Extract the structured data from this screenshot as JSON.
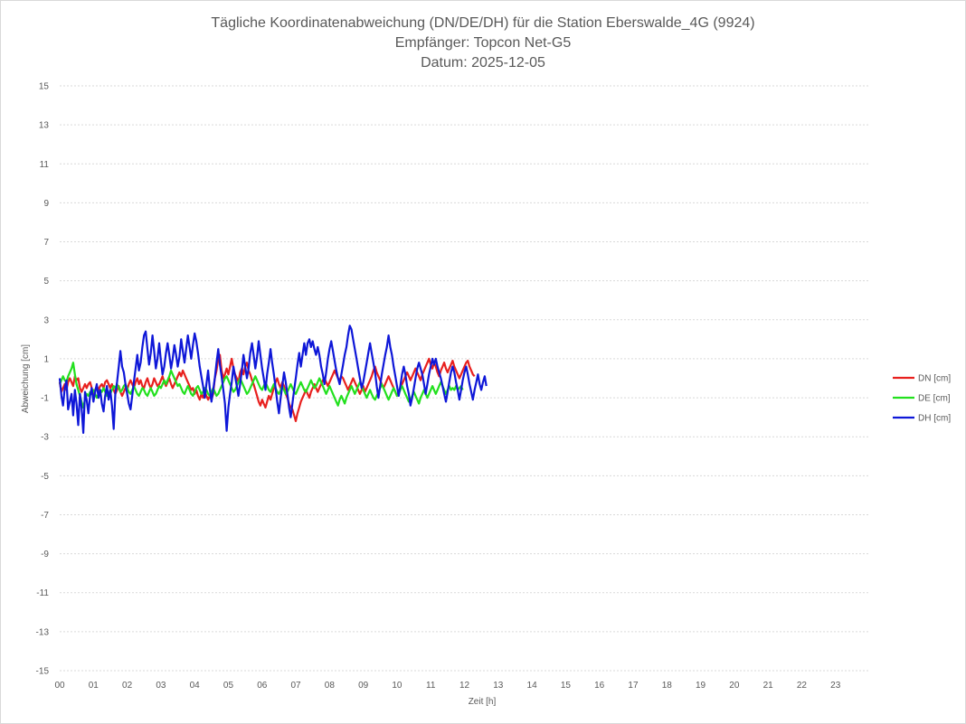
{
  "chart_data": {
    "type": "line",
    "title": [
      "Tägliche Koordinatenabweichung (DN/DE/DH) für die Station Eberswalde_4G (9924)",
      "Empfänger: Topcon Net-G5",
      "Datum: 2025-12-05"
    ],
    "xlabel": "Zeit [h]",
    "ylabel": "Abweichung [cm]",
    "ylim": [
      -15,
      15
    ],
    "yticks": [
      15,
      13,
      11,
      9,
      7,
      5,
      3,
      1,
      -1,
      -3,
      -5,
      -7,
      -9,
      -11,
      -13,
      -15
    ],
    "xlim": [
      0,
      24
    ],
    "xticks": [
      "00",
      "01",
      "02",
      "03",
      "04",
      "05",
      "06",
      "07",
      "08",
      "09",
      "10",
      "11",
      "12",
      "13",
      "14",
      "15",
      "16",
      "17",
      "18",
      "19",
      "20",
      "21",
      "22",
      "23"
    ],
    "grid": "horizontal dotted",
    "legend_position": "right",
    "sampling": "x values in hours at 0.05 h steps starting at 0",
    "series": [
      {
        "name": "DN [cm]",
        "color": "#e8201e",
        "values": [
          -0.2,
          -0.7,
          -0.5,
          -0.3,
          -0.6,
          -0.2,
          0.0,
          -0.2,
          -0.4,
          0.1,
          -0.1,
          0.0,
          -0.5,
          -0.7,
          -0.5,
          -0.3,
          -0.5,
          -0.3,
          -0.2,
          -0.5,
          -0.8,
          -0.6,
          -0.4,
          -0.6,
          -0.4,
          -0.3,
          -0.5,
          -0.2,
          -0.1,
          -0.3,
          -0.5,
          -0.3,
          -0.6,
          -0.8,
          -0.6,
          -0.4,
          -0.7,
          -0.9,
          -0.7,
          -0.5,
          -0.6,
          -0.3,
          -0.1,
          -0.3,
          -0.5,
          -0.2,
          0.0,
          -0.3,
          -0.1,
          -0.4,
          -0.5,
          -0.2,
          0.0,
          -0.3,
          -0.5,
          -0.3,
          0.0,
          -0.2,
          -0.4,
          -0.3,
          -0.1,
          0.1,
          -0.2,
          -0.4,
          -0.2,
          0.0,
          -0.3,
          -0.5,
          -0.3,
          -0.1,
          0.1,
          0.3,
          0.1,
          0.4,
          0.2,
          0.0,
          -0.2,
          -0.4,
          -0.6,
          -0.5,
          -0.8,
          -0.6,
          -0.9,
          -1.1,
          -0.8,
          -1.0,
          -0.7,
          -0.9,
          -1.1,
          -0.9,
          -1.1,
          -0.8,
          0.0,
          0.4,
          1.0,
          1.2,
          0.4,
          0.0,
          0.2,
          0.5,
          0.2,
          0.6,
          1.0,
          0.5,
          0.2,
          0.0,
          -0.2,
          0.3,
          0.5,
          0.2,
          0.6,
          0.8,
          0.4,
          0.2,
          -0.1,
          -0.3,
          -0.6,
          -0.9,
          -1.2,
          -1.4,
          -1.1,
          -1.3,
          -1.5,
          -1.2,
          -0.9,
          -1.1,
          -0.8,
          -0.5,
          -0.2,
          0.0,
          -0.3,
          -0.5,
          -0.2,
          -0.4,
          -0.8,
          -1.0,
          -1.3,
          -1.5,
          -1.6,
          -1.9,
          -2.2,
          -1.8,
          -1.5,
          -1.2,
          -1.0,
          -0.8,
          -0.6,
          -0.8,
          -1.0,
          -0.7,
          -0.5,
          -0.3,
          -0.5,
          -0.7,
          -0.5,
          -0.3,
          -0.1,
          0.0,
          -0.2,
          -0.4,
          -0.2,
          0.0,
          0.2,
          0.4,
          0.2,
          0.0,
          -0.1,
          0.1,
          0.0,
          -0.2,
          -0.4,
          -0.6,
          -0.4,
          -0.2,
          0.0,
          -0.2,
          -0.4,
          -0.6,
          -0.8,
          -0.6,
          -0.4,
          -0.7,
          -0.5,
          -0.3,
          -0.1,
          0.1,
          0.4,
          0.6,
          0.3,
          0.1,
          -0.1,
          -0.3,
          -0.5,
          -0.3,
          -0.1,
          0.1,
          -0.1,
          -0.3,
          -0.5,
          -0.7,
          -0.9,
          -0.7,
          -0.5,
          -0.3,
          -0.1,
          0.1,
          0.3,
          0.1,
          -0.1,
          0.1,
          0.3,
          0.5,
          0.3,
          0.1,
          -0.1,
          0.2,
          0.4,
          0.6,
          0.8,
          1.0,
          0.7,
          0.5,
          0.8,
          0.6,
          0.3,
          0.1,
          0.4,
          0.6,
          0.8,
          0.5,
          0.3,
          0.5,
          0.7,
          0.9,
          0.6,
          0.4,
          0.2,
          0.0,
          0.2,
          0.4,
          0.6,
          0.8,
          0.9,
          0.6,
          0.4,
          0.2,
          0.1
        ]
      },
      {
        "name": "DE [cm]",
        "color": "#22e01e",
        "values": [
          -0.3,
          -0.1,
          0.1,
          -0.1,
          -0.2,
          0.1,
          0.3,
          0.5,
          0.8,
          0.2,
          -0.3,
          -0.6,
          -0.9,
          -1.2,
          -1.5,
          -1.1,
          -0.8,
          -0.9,
          -0.7,
          -0.8,
          -0.6,
          -0.8,
          -1.0,
          -0.8,
          -0.6,
          -0.7,
          -0.5,
          -0.7,
          -0.9,
          -0.7,
          -0.8,
          -0.6,
          -0.4,
          -0.5,
          -0.3,
          -0.5,
          -0.7,
          -0.6,
          -0.4,
          -0.3,
          -0.5,
          -0.7,
          -0.8,
          -0.6,
          -0.4,
          -0.6,
          -0.8,
          -0.9,
          -0.7,
          -0.5,
          -0.6,
          -0.8,
          -0.9,
          -0.7,
          -0.5,
          -0.7,
          -0.9,
          -0.8,
          -0.6,
          -0.4,
          -0.5,
          -0.3,
          -0.1,
          -0.3,
          -0.1,
          0.1,
          0.4,
          0.2,
          0.0,
          -0.2,
          -0.4,
          -0.3,
          -0.5,
          -0.7,
          -0.8,
          -0.6,
          -0.4,
          -0.6,
          -0.8,
          -0.9,
          -0.7,
          -0.5,
          -0.4,
          -0.6,
          -0.8,
          -0.7,
          -0.5,
          -0.6,
          -0.8,
          -0.9,
          -0.7,
          -0.5,
          -0.7,
          -0.9,
          -0.8,
          -0.6,
          -0.4,
          -0.2,
          0.0,
          0.1,
          -0.1,
          -0.3,
          -0.5,
          -0.7,
          -0.6,
          -0.4,
          -0.2,
          0.0,
          -0.2,
          -0.4,
          -0.6,
          -0.8,
          -0.7,
          -0.5,
          -0.3,
          -0.1,
          0.1,
          -0.1,
          -0.3,
          -0.5,
          -0.6,
          -0.4,
          -0.2,
          -0.4,
          -0.6,
          -0.7,
          -0.5,
          -0.3,
          -0.5,
          -0.7,
          -0.8,
          -0.6,
          -0.4,
          -0.6,
          -0.8,
          -0.7,
          -0.5,
          -0.3,
          -0.5,
          -0.7,
          -0.8,
          -0.6,
          -0.4,
          -0.2,
          -0.4,
          -0.6,
          -0.7,
          -0.5,
          -0.3,
          -0.1,
          -0.3,
          -0.5,
          -0.4,
          -0.2,
          0.0,
          -0.2,
          -0.4,
          -0.6,
          -0.8,
          -0.6,
          -0.4,
          -0.6,
          -0.8,
          -1.0,
          -1.2,
          -1.4,
          -1.1,
          -0.9,
          -1.1,
          -1.3,
          -1.0,
          -0.8,
          -0.6,
          -0.4,
          -0.6,
          -0.8,
          -0.6,
          -0.4,
          -0.2,
          -0.4,
          -0.6,
          -0.8,
          -1.0,
          -0.8,
          -0.6,
          -0.8,
          -1.0,
          -1.1,
          -0.9,
          -0.7,
          -0.5,
          -0.3,
          -0.5,
          -0.7,
          -0.9,
          -1.1,
          -0.9,
          -0.7,
          -0.5,
          -0.7,
          -0.9,
          -0.8,
          -0.6,
          -0.4,
          -0.6,
          -0.8,
          -1.0,
          -1.2,
          -1.1,
          -0.9,
          -0.7,
          -0.9,
          -1.1,
          -1.3,
          -1.0,
          -0.8,
          -0.6,
          -0.8,
          -1.0,
          -0.8,
          -0.6,
          -0.4,
          -0.6,
          -0.8,
          -0.6,
          -0.4,
          -0.2,
          -0.4,
          -0.6,
          -0.8,
          -0.6,
          -0.4,
          -0.6,
          -0.5,
          -0.6,
          -0.4,
          -0.6,
          -0.5,
          -0.4,
          -0.6
        ]
      },
      {
        "name": "DH [cm]",
        "color": "#0e17d8",
        "values": [
          0.0,
          -0.9,
          -1.4,
          -0.5,
          -0.1,
          -1.6,
          -1.2,
          -0.8,
          -1.9,
          -0.6,
          -1.3,
          -2.4,
          -0.8,
          -1.5,
          -2.8,
          -0.7,
          -1.1,
          -1.8,
          -0.9,
          -0.5,
          -1.2,
          -0.7,
          -0.3,
          -1.0,
          -0.6,
          -1.3,
          -1.7,
          -0.9,
          -0.4,
          -1.1,
          -0.6,
          -1.4,
          -2.6,
          -0.8,
          -0.2,
          0.6,
          1.4,
          0.6,
          0.3,
          -0.3,
          -0.8,
          -1.3,
          -1.6,
          -0.9,
          -0.2,
          0.5,
          1.2,
          0.4,
          0.8,
          1.6,
          2.2,
          2.4,
          1.5,
          0.7,
          1.3,
          2.2,
          1.4,
          0.5,
          1.0,
          1.8,
          0.9,
          0.2,
          0.6,
          1.3,
          1.8,
          1.2,
          0.5,
          1.0,
          1.7,
          1.2,
          0.6,
          1.1,
          2.0,
          1.4,
          0.8,
          1.5,
          2.2,
          1.6,
          1.0,
          1.7,
          2.3,
          1.9,
          1.3,
          0.6,
          0.1,
          -0.4,
          -1.0,
          -0.3,
          0.4,
          -0.5,
          -1.2,
          -0.6,
          0.0,
          0.8,
          1.5,
          0.7,
          0.1,
          -0.6,
          -1.3,
          -2.7,
          -1.5,
          -0.8,
          -0.2,
          0.6,
          0.1,
          -0.4,
          -0.9,
          -0.3,
          0.4,
          1.2,
          0.6,
          0.0,
          0.5,
          1.3,
          1.8,
          1.2,
          0.5,
          1.1,
          1.9,
          1.2,
          0.5,
          0.0,
          -0.6,
          0.2,
          0.8,
          1.5,
          0.8,
          0.2,
          -0.5,
          -1.2,
          -1.8,
          -1.0,
          -0.4,
          0.3,
          -0.2,
          -0.8,
          -1.5,
          -2.0,
          -1.3,
          -0.6,
          0.0,
          0.7,
          1.3,
          0.6,
          1.2,
          1.8,
          1.2,
          1.8,
          2.0,
          1.6,
          1.9,
          1.5,
          1.2,
          1.6,
          1.2,
          0.6,
          0.2,
          -0.3,
          0.3,
          1.0,
          1.5,
          1.9,
          1.4,
          0.9,
          0.4,
          0.0,
          -0.3,
          0.2,
          0.7,
          1.2,
          1.6,
          2.2,
          2.7,
          2.5,
          2.0,
          1.5,
          1.0,
          0.5,
          0.0,
          -0.5,
          -0.2,
          0.3,
          0.8,
          1.3,
          1.8,
          1.3,
          0.8,
          0.3,
          -0.4,
          -1.0,
          -0.4,
          0.2,
          0.7,
          1.2,
          1.6,
          2.2,
          1.6,
          1.2,
          0.6,
          0.1,
          -0.4,
          -0.9,
          -0.4,
          0.2,
          0.6,
          0.2,
          -0.4,
          -0.8,
          -1.4,
          -1.0,
          -0.5,
          0.0,
          0.5,
          0.8,
          0.5,
          0.2,
          -0.3,
          -0.8,
          -0.3,
          0.2,
          0.6,
          1.0,
          0.7,
          1.0,
          0.6,
          0.3,
          0.0,
          -0.4,
          -0.8,
          -1.2,
          -0.7,
          -0.2,
          0.3,
          0.6,
          0.3,
          -0.2,
          -0.6,
          -1.1,
          -0.6,
          -0.1,
          0.3,
          0.6,
          0.2,
          -0.3,
          -0.7,
          -1.1,
          -0.6,
          -0.2,
          0.2,
          -0.3,
          -0.6,
          -0.2,
          0.1,
          -0.4
        ]
      }
    ]
  }
}
